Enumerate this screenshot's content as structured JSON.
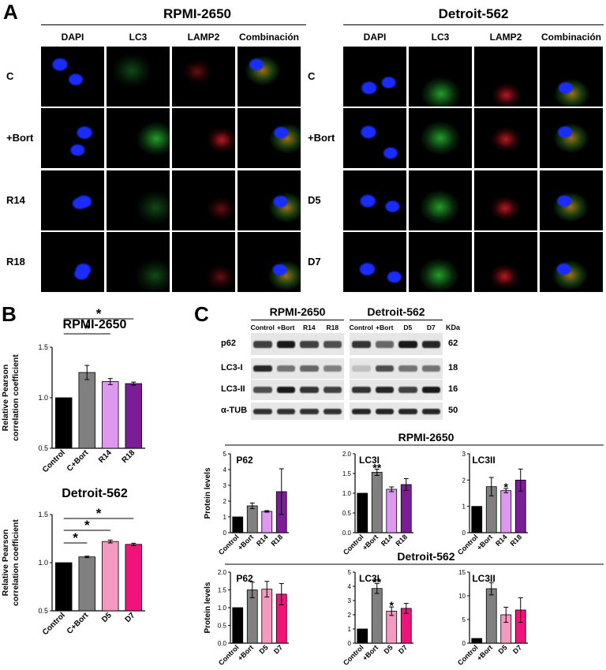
{
  "panelA": {
    "letter": "A",
    "groups": [
      {
        "title": "RPMI-2650",
        "columns": [
          "DAPI",
          "LC3",
          "LAMP2",
          "Combinación"
        ],
        "rows": [
          "C",
          "+Bort",
          "R14",
          "R18"
        ]
      },
      {
        "title": "Detroit-562",
        "columns": [
          "DAPI",
          "LC3",
          "LAMP2",
          "Combinación"
        ],
        "rows": [
          "C",
          "+Bort",
          "D5",
          "D7"
        ]
      }
    ],
    "channel_colors": {
      "dapi": "#1a2cff",
      "lc3": "#2fd13a",
      "lamp2": "#e0202a",
      "merge": "#d8a020"
    }
  },
  "panelB": {
    "letter": "B",
    "ylabel": "Relative Pearson correlation coefficient"
  },
  "panelC": {
    "letter": "C",
    "blot": {
      "groups": [
        {
          "title": "RPMI-2650",
          "lanes": [
            "Control",
            "+Bort",
            "R14",
            "R18"
          ]
        },
        {
          "title": "Detroit-562",
          "lanes": [
            "Control",
            "+Bort",
            "D5",
            "D7"
          ]
        }
      ],
      "kda_header": "KDa",
      "bands": [
        {
          "label": "p62",
          "kda": "62"
        },
        {
          "label": "LC3-I",
          "kda": "18"
        },
        {
          "label": "LC3-II",
          "kda": "16"
        },
        {
          "label": "α-TUB",
          "kda": "50"
        }
      ]
    },
    "section_titles": [
      "RPMI-2650",
      "Detroit-562"
    ],
    "ylabel": "Protein levels"
  },
  "chart_data": [
    {
      "type": "bar",
      "title": "RPMI-2650",
      "categories": [
        "Control",
        "C+Bort",
        "R14",
        "R18"
      ],
      "values": [
        1.0,
        1.25,
        1.16,
        1.14
      ],
      "errors": [
        0,
        0.07,
        0.03,
        0.015
      ],
      "colors": [
        "#000000",
        "#808080",
        "#dd99ee",
        "#7a1d96"
      ],
      "ylabel": "Relative Pearson correlation coefficient",
      "ylim": [
        0.5,
        1.5
      ],
      "yticks": [
        "0.5",
        "1.0",
        "1.5"
      ],
      "significance": [
        "*",
        "*",
        "*"
      ]
    },
    {
      "type": "bar",
      "title": "Detroit-562",
      "categories": [
        "Control",
        "C+Bort",
        "D5",
        "D7"
      ],
      "values": [
        1.0,
        1.06,
        1.22,
        1.19
      ],
      "errors": [
        0,
        0.008,
        0.015,
        0.012
      ],
      "colors": [
        "#000000",
        "#808080",
        "#f49ac1",
        "#f0147a"
      ],
      "ylabel": "Relative Pearson correlation coefficient",
      "ylim": [
        0.5,
        1.5
      ],
      "yticks": [
        "0.5",
        "1.0",
        "1.5"
      ],
      "significance": [
        "*",
        "*",
        "*"
      ]
    },
    {
      "type": "bar",
      "title": "P62",
      "categories": [
        "Control",
        "+Bort",
        "R14",
        "R18"
      ],
      "values": [
        1.0,
        1.7,
        1.35,
        2.6
      ],
      "errors": [
        0,
        0.18,
        0.05,
        1.45
      ],
      "colors": [
        "#000000",
        "#808080",
        "#dd99ee",
        "#7a1d96"
      ],
      "ylabel": "Protein levels",
      "ylim": [
        0,
        5
      ],
      "yticks": [
        "0",
        "1",
        "2",
        "3",
        "4",
        "5"
      ],
      "stars": [
        "",
        "",
        "",
        ""
      ]
    },
    {
      "type": "bar",
      "title": "LC3I",
      "categories": [
        "Control",
        "+Bort",
        "R14",
        "R18"
      ],
      "values": [
        1.0,
        1.53,
        1.1,
        1.22
      ],
      "errors": [
        0,
        0.08,
        0.06,
        0.15
      ],
      "colors": [
        "#000000",
        "#808080",
        "#dd99ee",
        "#7a1d96"
      ],
      "ylim": [
        0,
        2.0
      ],
      "yticks": [
        "0.0",
        "0.5",
        "1.0",
        "1.5",
        "2.0"
      ],
      "stars": [
        "",
        "**",
        "",
        ""
      ]
    },
    {
      "type": "bar",
      "title": "LC3II",
      "categories": [
        "Control",
        "+Bort",
        "R14",
        "R18"
      ],
      "values": [
        1.0,
        1.75,
        1.6,
        2.0
      ],
      "errors": [
        0,
        0.35,
        0.08,
        0.42
      ],
      "colors": [
        "#000000",
        "#808080",
        "#dd99ee",
        "#7a1d96"
      ],
      "ylim": [
        0,
        3
      ],
      "yticks": [
        "0",
        "1",
        "2",
        "3"
      ],
      "stars": [
        "",
        "",
        "*",
        ""
      ]
    },
    {
      "type": "bar",
      "title": "P62",
      "categories": [
        "Control",
        "+Bort",
        "D5",
        "D7"
      ],
      "values": [
        1.0,
        1.5,
        1.52,
        1.38
      ],
      "errors": [
        0,
        0.22,
        0.22,
        0.3
      ],
      "colors": [
        "#000000",
        "#808080",
        "#f49ac1",
        "#f0147a"
      ],
      "ylabel": "Protein levels",
      "ylim": [
        0,
        2.0
      ],
      "yticks": [
        "0.0",
        "0.5",
        "1.0",
        "1.5",
        "2.0"
      ],
      "stars": [
        "",
        "",
        "",
        ""
      ]
    },
    {
      "type": "bar",
      "title": "LC3I",
      "categories": [
        "Control",
        "+Bort",
        "D5",
        "D7"
      ],
      "values": [
        1.0,
        3.85,
        2.25,
        2.45
      ],
      "errors": [
        0,
        0.35,
        0.3,
        0.35
      ],
      "colors": [
        "#000000",
        "#808080",
        "#f49ac1",
        "#f0147a"
      ],
      "ylim": [
        0,
        5
      ],
      "yticks": [
        "0",
        "1",
        "2",
        "3",
        "4",
        "5"
      ],
      "stars": [
        "",
        "**",
        "*",
        ""
      ]
    },
    {
      "type": "bar",
      "title": "LC3II",
      "categories": [
        "Control",
        "+Bort",
        "D5",
        "D7"
      ],
      "values": [
        1.0,
        11.5,
        6.0,
        7.0
      ],
      "errors": [
        0,
        1.3,
        1.6,
        2.6
      ],
      "colors": [
        "#000000",
        "#808080",
        "#f49ac1",
        "#f0147a"
      ],
      "ylim": [
        0,
        15
      ],
      "yticks": [
        "0",
        "5",
        "10",
        "15"
      ],
      "stars": [
        "",
        "",
        "",
        ""
      ]
    }
  ]
}
